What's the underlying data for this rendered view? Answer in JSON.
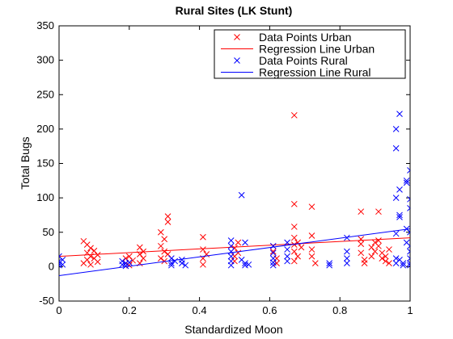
{
  "chart_data": {
    "type": "scatter",
    "title": "Rural Sites (LK  Stunt)",
    "xlabel": "Standardized Moon",
    "ylabel": "Total Bugs",
    "xlim": [
      0,
      1
    ],
    "ylim": [
      -50,
      350
    ],
    "xticks": [
      "0",
      "0.2",
      "0.4",
      "0.6",
      "0.8",
      "1"
    ],
    "yticks": [
      "-50",
      "0",
      "50",
      "100",
      "150",
      "200",
      "250",
      "300",
      "350"
    ],
    "grid": false,
    "legend_position": "top-right",
    "series": [
      {
        "name": "Data Points Urban",
        "kind": "scatter",
        "color": "#ff0000",
        "marker": "x",
        "points": [
          [
            0.07,
            37
          ],
          [
            0.07,
            5
          ],
          [
            0.08,
            32
          ],
          [
            0.08,
            20
          ],
          [
            0.08,
            10
          ],
          [
            0.09,
            27
          ],
          [
            0.09,
            15
          ],
          [
            0.09,
            3
          ],
          [
            0.1,
            23
          ],
          [
            0.1,
            12
          ],
          [
            0.11,
            7
          ],
          [
            0.11,
            17
          ],
          [
            0.19,
            12
          ],
          [
            0.19,
            5
          ],
          [
            0.2,
            15
          ],
          [
            0.2,
            2
          ],
          [
            0.21,
            9
          ],
          [
            0.23,
            28
          ],
          [
            0.23,
            18
          ],
          [
            0.23,
            5
          ],
          [
            0.24,
            22
          ],
          [
            0.24,
            12
          ],
          [
            0.29,
            50
          ],
          [
            0.29,
            30
          ],
          [
            0.29,
            12
          ],
          [
            0.3,
            40
          ],
          [
            0.3,
            22
          ],
          [
            0.3,
            8
          ],
          [
            0.31,
            73
          ],
          [
            0.31,
            65
          ],
          [
            0.31,
            18
          ],
          [
            0.41,
            43
          ],
          [
            0.41,
            25
          ],
          [
            0.41,
            12
          ],
          [
            0.41,
            3
          ],
          [
            0.42,
            18
          ],
          [
            0.5,
            27
          ],
          [
            0.5,
            15
          ],
          [
            0.5,
            8
          ],
          [
            0.51,
            35
          ],
          [
            0.51,
            20
          ],
          [
            0.61,
            30
          ],
          [
            0.61,
            22
          ],
          [
            0.62,
            12
          ],
          [
            0.62,
            5
          ],
          [
            0.67,
            220
          ],
          [
            0.67,
            91
          ],
          [
            0.67,
            58
          ],
          [
            0.67,
            42
          ],
          [
            0.67,
            32
          ],
          [
            0.67,
            22
          ],
          [
            0.67,
            8
          ],
          [
            0.68,
            35
          ],
          [
            0.68,
            15
          ],
          [
            0.69,
            28
          ],
          [
            0.72,
            87
          ],
          [
            0.72,
            45
          ],
          [
            0.72,
            25
          ],
          [
            0.72,
            15
          ],
          [
            0.73,
            5
          ],
          [
            0.86,
            80
          ],
          [
            0.86,
            40
          ],
          [
            0.86,
            33
          ],
          [
            0.86,
            20
          ],
          [
            0.87,
            10
          ],
          [
            0.87,
            5
          ],
          [
            0.89,
            28
          ],
          [
            0.89,
            15
          ],
          [
            0.9,
            35
          ],
          [
            0.9,
            22
          ],
          [
            0.91,
            80
          ],
          [
            0.91,
            38
          ],
          [
            0.91,
            30
          ],
          [
            0.92,
            12
          ],
          [
            0.92,
            20
          ],
          [
            0.93,
            8
          ],
          [
            0.93,
            15
          ],
          [
            0.94,
            5
          ],
          [
            0.94,
            25
          ]
        ]
      },
      {
        "name": "Regression Line Urban",
        "kind": "line",
        "color": "#ff0000",
        "points": [
          [
            0,
            15
          ],
          [
            1,
            42
          ]
        ]
      },
      {
        "name": "Data Points Rural",
        "kind": "scatter",
        "color": "#0000ff",
        "marker": "x",
        "points": [
          [
            0,
            15
          ],
          [
            0,
            8
          ],
          [
            0,
            5
          ],
          [
            0,
            2
          ],
          [
            0.01,
            10
          ],
          [
            0.01,
            3
          ],
          [
            0.18,
            8
          ],
          [
            0.18,
            3
          ],
          [
            0.19,
            5
          ],
          [
            0.19,
            1
          ],
          [
            0.2,
            6
          ],
          [
            0.32,
            12
          ],
          [
            0.32,
            5
          ],
          [
            0.32,
            2
          ],
          [
            0.33,
            8
          ],
          [
            0.35,
            10
          ],
          [
            0.35,
            5
          ],
          [
            0.36,
            2
          ],
          [
            0.49,
            38
          ],
          [
            0.49,
            30
          ],
          [
            0.49,
            22
          ],
          [
            0.49,
            15
          ],
          [
            0.49,
            8
          ],
          [
            0.49,
            2
          ],
          [
            0.52,
            104
          ],
          [
            0.52,
            10
          ],
          [
            0.53,
            35
          ],
          [
            0.53,
            5
          ],
          [
            0.53,
            2
          ],
          [
            0.54,
            3
          ],
          [
            0.61,
            30
          ],
          [
            0.61,
            20
          ],
          [
            0.61,
            12
          ],
          [
            0.61,
            6
          ],
          [
            0.61,
            2
          ],
          [
            0.65,
            35
          ],
          [
            0.65,
            25
          ],
          [
            0.65,
            15
          ],
          [
            0.65,
            8
          ],
          [
            0.77,
            5
          ],
          [
            0.77,
            2
          ],
          [
            0.82,
            42
          ],
          [
            0.82,
            22
          ],
          [
            0.82,
            12
          ],
          [
            0.82,
            5
          ],
          [
            0.96,
            200
          ],
          [
            0.96,
            172
          ],
          [
            0.96,
            100
          ],
          [
            0.96,
            48
          ],
          [
            0.96,
            12
          ],
          [
            0.96,
            5
          ],
          [
            0.97,
            222
          ],
          [
            0.97,
            112
          ],
          [
            0.97,
            72
          ],
          [
            0.97,
            75
          ],
          [
            0.97,
            10
          ],
          [
            0.98,
            5
          ],
          [
            0.98,
            2
          ],
          [
            0.99,
            125
          ],
          [
            0.99,
            122
          ],
          [
            0.99,
            55
          ],
          [
            0.99,
            35
          ],
          [
            1.0,
            140
          ],
          [
            1.0,
            98
          ],
          [
            1.0,
            85
          ],
          [
            1.0,
            50
          ],
          [
            1.0,
            30
          ],
          [
            1.0,
            22
          ],
          [
            1.0,
            12
          ],
          [
            1.0,
            5
          ],
          [
            1.0,
            2
          ]
        ]
      },
      {
        "name": "Regression Line Rural",
        "kind": "line",
        "color": "#0000ff",
        "points": [
          [
            0,
            -13
          ],
          [
            1,
            55
          ]
        ]
      }
    ]
  }
}
